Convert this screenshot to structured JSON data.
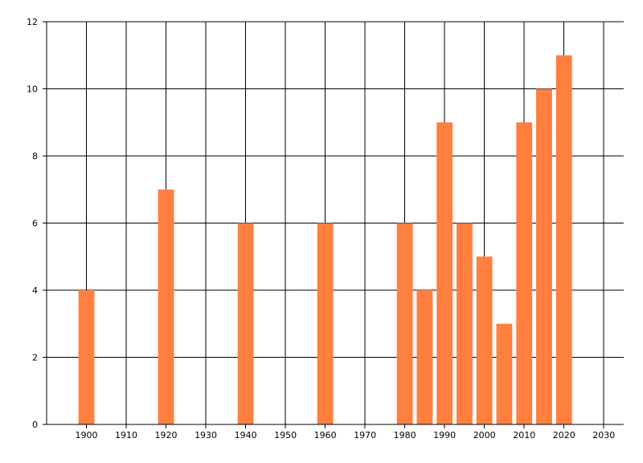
{
  "chart_data": {
    "type": "bar",
    "title": "",
    "xlabel": "",
    "ylabel": "",
    "x": [
      1900,
      1920,
      1940,
      1960,
      1980,
      1985,
      1990,
      1995,
      2000,
      2005,
      2010,
      2015,
      2020
    ],
    "values": [
      4,
      7,
      6,
      6,
      6,
      4,
      9,
      6,
      5,
      3,
      9,
      10,
      11
    ],
    "xlim": [
      1890,
      2035
    ],
    "ylim": [
      0,
      12
    ],
    "x_ticks": [
      1900,
      1910,
      1920,
      1930,
      1940,
      1950,
      1960,
      1970,
      1980,
      1990,
      2000,
      2010,
      2020,
      2030
    ],
    "y_ticks": [
      0,
      2,
      4,
      6,
      8,
      10,
      12
    ],
    "grid": true,
    "bar_color": "#ff7f3f",
    "grid_color": "#000000"
  }
}
